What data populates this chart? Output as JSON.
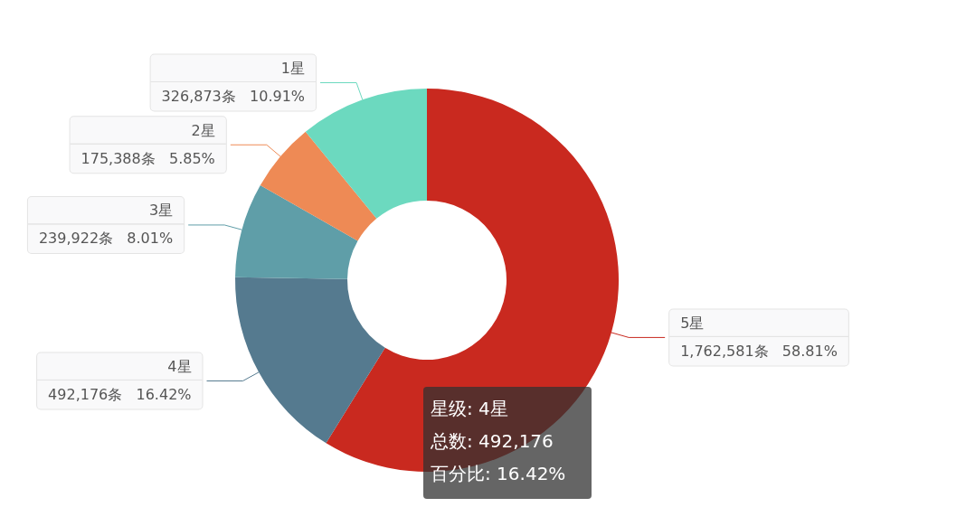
{
  "chart_data": {
    "type": "donut",
    "categories": [
      "5星",
      "4星",
      "3星",
      "2星",
      "1星"
    ],
    "values": [
      1762581,
      492176,
      239922,
      175388,
      326873
    ],
    "colors": [
      "#c9291f",
      "#557a8f",
      "#5f9ea8",
      "#ee8a55",
      "#6cd9bf"
    ],
    "value_labels": [
      "1,762,581条   58.81%",
      "492,176条   16.42%",
      "239,922条   8.01%",
      "175,388条   5.85%",
      "326,873条   10.91%"
    ],
    "annotations": [
      "星级: 4星",
      "总数: 492,176",
      "百分比: 16.42%"
    ]
  }
}
